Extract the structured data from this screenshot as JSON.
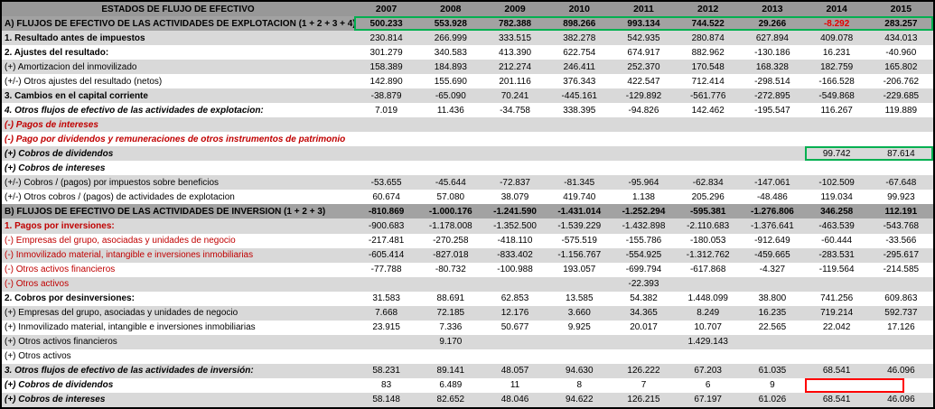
{
  "colors": {
    "header_bg": "#989898",
    "section_bg": "#a2a2a2",
    "shaded_row_bg": "#d9d9d9",
    "red_label": "#c00000",
    "red_value": "#e60000",
    "green_highlight": "#00b050",
    "red_highlight": "#ff0000"
  },
  "table": {
    "corner_label": "ESTADOS DE FLUJO DE EFECTIVO",
    "years": [
      "2007",
      "2008",
      "2009",
      "2010",
      "2011",
      "2012",
      "2013",
      "2014",
      "2015"
    ],
    "rows": [
      {
        "label": "A) FLUJOS DE EFECTIVO DE LAS ACTIVIDADES DE EXPLOTACION (1 + 2 + 3 + 4)",
        "type": "section",
        "label_cls": "",
        "values": [
          "500.233",
          "553.928",
          "782.388",
          "898.266",
          "993.134",
          "744.522",
          "29.266",
          "-8.292",
          "283.257"
        ],
        "red_cols": [
          7
        ]
      },
      {
        "label": "1. Resultado antes de impuestos",
        "shaded": true,
        "label_cls": "bold",
        "values": [
          "230.814",
          "266.999",
          "333.515",
          "382.278",
          "542.935",
          "280.874",
          "627.894",
          "409.078",
          "434.013"
        ]
      },
      {
        "label": "2. Ajustes del resultado:",
        "shaded": false,
        "label_cls": "bold",
        "values": [
          "301.279",
          "340.583",
          "413.390",
          "622.754",
          "674.917",
          "882.962",
          "-130.186",
          "16.231",
          "-40.960"
        ]
      },
      {
        "label": "(+) Amortizacion del inmovilizado",
        "shaded": true,
        "label_cls": "",
        "values": [
          "158.389",
          "184.893",
          "212.274",
          "246.411",
          "252.370",
          "170.548",
          "168.328",
          "182.759",
          "165.802"
        ]
      },
      {
        "label": "(+/-) Otros ajustes del resultado (netos)",
        "shaded": false,
        "label_cls": "",
        "values": [
          "142.890",
          "155.690",
          "201.116",
          "376.343",
          "422.547",
          "712.414",
          "-298.514",
          "-166.528",
          "-206.762"
        ]
      },
      {
        "label": "3. Cambios en el capital corriente",
        "shaded": true,
        "label_cls": "bold",
        "values": [
          "-38.879",
          "-65.090",
          "70.241",
          "-445.161",
          "-129.892",
          "-561.776",
          "-272.895",
          "-549.868",
          "-229.685"
        ]
      },
      {
        "label": "4. Otros flujos de efectivo de las actividades de explotacion:",
        "shaded": false,
        "label_cls": "bold italic",
        "values": [
          "7.019",
          "11.436",
          "-34.758",
          "338.395",
          "-94.826",
          "142.462",
          "-195.547",
          "116.267",
          "119.889"
        ]
      },
      {
        "label": "(-) Pagos de intereses",
        "shaded": true,
        "label_cls": "red bold italic",
        "values": [
          "",
          "",
          "",
          "",
          "",
          "",
          "",
          "",
          ""
        ]
      },
      {
        "label": "(-) Pago por dividendos y remuneraciones de otros instrumentos de patrimonio",
        "shaded": false,
        "label_cls": "red bold italic",
        "values": [
          "",
          "",
          "",
          "",
          "",
          "",
          "",
          "",
          ""
        ]
      },
      {
        "label": "(+) Cobros de dividendos",
        "shaded": true,
        "label_cls": "bold italic",
        "values": [
          "",
          "",
          "",
          "",
          "",
          "",
          "",
          "99.742",
          "87.614"
        ]
      },
      {
        "label": "(+) Cobros de intereses",
        "shaded": false,
        "label_cls": "bold italic",
        "values": [
          "",
          "",
          "",
          "",
          "",
          "",
          "",
          "",
          ""
        ]
      },
      {
        "label": "(+/-) Cobros / (pagos) por impuestos sobre beneficios",
        "shaded": true,
        "label_cls": "",
        "values": [
          "-53.655",
          "-45.644",
          "-72.837",
          "-81.345",
          "-95.964",
          "-62.834",
          "-147.061",
          "-102.509",
          "-67.648"
        ]
      },
      {
        "label": "(+/-) Otros cobros / (pagos) de actividades de explotacion",
        "shaded": false,
        "label_cls": "",
        "values": [
          "60.674",
          "57.080",
          "38.079",
          "419.740",
          "1.138",
          "205.296",
          "-48.486",
          "119.034",
          "99.923"
        ]
      },
      {
        "label": "B) FLUJOS DE EFECTIVO DE LAS ACTIVIDADES DE INVERSION (1 + 2 + 3)",
        "type": "section",
        "label_cls": "",
        "values": [
          "-810.869",
          "-1.000.176",
          "-1.241.590",
          "-1.431.014",
          "-1.252.294",
          "-595.381",
          "-1.276.806",
          "346.258",
          "112.191"
        ]
      },
      {
        "label": "1. Pagos por inversiones:",
        "shaded": true,
        "label_cls": "red bold",
        "values": [
          "-900.683",
          "-1.178.008",
          "-1.352.500",
          "-1.539.229",
          "-1.432.898",
          "-2.110.683",
          "-1.376.641",
          "-463.539",
          "-543.768"
        ]
      },
      {
        "label": "(-) Empresas del grupo, asociadas y unidades de negocio",
        "shaded": false,
        "label_cls": "red",
        "values": [
          "-217.481",
          "-270.258",
          "-418.110",
          "-575.519",
          "-155.786",
          "-180.053",
          "-912.649",
          "-60.444",
          "-33.566"
        ]
      },
      {
        "label": "(-) Inmovilizado material, intangible e inversiones inmobiliarias",
        "shaded": true,
        "label_cls": "red",
        "values": [
          "-605.414",
          "-827.018",
          "-833.402",
          "-1.156.767",
          "-554.925",
          "-1.312.762",
          "-459.665",
          "-283.531",
          "-295.617"
        ]
      },
      {
        "label": "(-) Otros activos financieros",
        "shaded": false,
        "label_cls": "red",
        "values": [
          "-77.788",
          "-80.732",
          "-100.988",
          "193.057",
          "-699.794",
          "-617.868",
          "-4.327",
          "-119.564",
          "-214.585"
        ]
      },
      {
        "label": "(-) Otros activos",
        "shaded": true,
        "label_cls": "red",
        "values": [
          "",
          "",
          "",
          "",
          "-22.393",
          "",
          "",
          "",
          ""
        ]
      },
      {
        "label": "2. Cobros por desinversiones:",
        "shaded": false,
        "label_cls": "bold",
        "values": [
          "31.583",
          "88.691",
          "62.853",
          "13.585",
          "54.382",
          "1.448.099",
          "38.800",
          "741.256",
          "609.863"
        ]
      },
      {
        "label": "(+) Empresas del grupo, asociadas y unidades de negocio",
        "shaded": true,
        "label_cls": "",
        "values": [
          "7.668",
          "72.185",
          "12.176",
          "3.660",
          "34.365",
          "8.249",
          "16.235",
          "719.214",
          "592.737"
        ]
      },
      {
        "label": "(+) Inmovilizado material, intangible e inversiones inmobiliarias",
        "shaded": false,
        "label_cls": "",
        "values": [
          "23.915",
          "7.336",
          "50.677",
          "9.925",
          "20.017",
          "10.707",
          "22.565",
          "22.042",
          "17.126"
        ]
      },
      {
        "label": "(+) Otros activos financieros",
        "shaded": true,
        "label_cls": "",
        "values": [
          "",
          "9.170",
          "",
          "",
          "",
          "1.429.143",
          "",
          "",
          ""
        ]
      },
      {
        "label": "(+) Otros activos",
        "shaded": false,
        "label_cls": "",
        "values": [
          "",
          "",
          "",
          "",
          "",
          "",
          "",
          "",
          ""
        ]
      },
      {
        "label": "3. Otros flujos de efectivo de las actividades de inversión:",
        "shaded": true,
        "label_cls": "bold italic",
        "values": [
          "58.231",
          "89.141",
          "48.057",
          "94.630",
          "126.222",
          "67.203",
          "61.035",
          "68.541",
          "46.096"
        ]
      },
      {
        "label": "(+) Cobros de dividendos",
        "shaded": false,
        "label_cls": "bold italic",
        "values": [
          "83",
          "6.489",
          "11",
          "8",
          "7",
          "6",
          "9",
          "",
          ""
        ]
      },
      {
        "label": "(+) Cobros de intereses",
        "shaded": true,
        "label_cls": "bold italic",
        "values": [
          "58.148",
          "82.652",
          "48.046",
          "94.622",
          "126.215",
          "67.197",
          "61.026",
          "68.541",
          "46.096"
        ]
      }
    ]
  },
  "highlights": [
    {
      "name": "green-box-operating-cashflow-total",
      "row": 0,
      "col_start": 0,
      "col_end": 8,
      "color": "#00b050",
      "trim_right": 0
    },
    {
      "name": "green-box-cobros-dividendos-2014-2015",
      "row": 9,
      "col_start": 7,
      "col_end": 8,
      "color": "#00b050",
      "trim_right": 0
    },
    {
      "name": "red-box-missing-dividendos-2014",
      "row": 25,
      "col_start": 7,
      "col_end": 8,
      "color": "#ff0000",
      "trim_right": 32
    }
  ]
}
